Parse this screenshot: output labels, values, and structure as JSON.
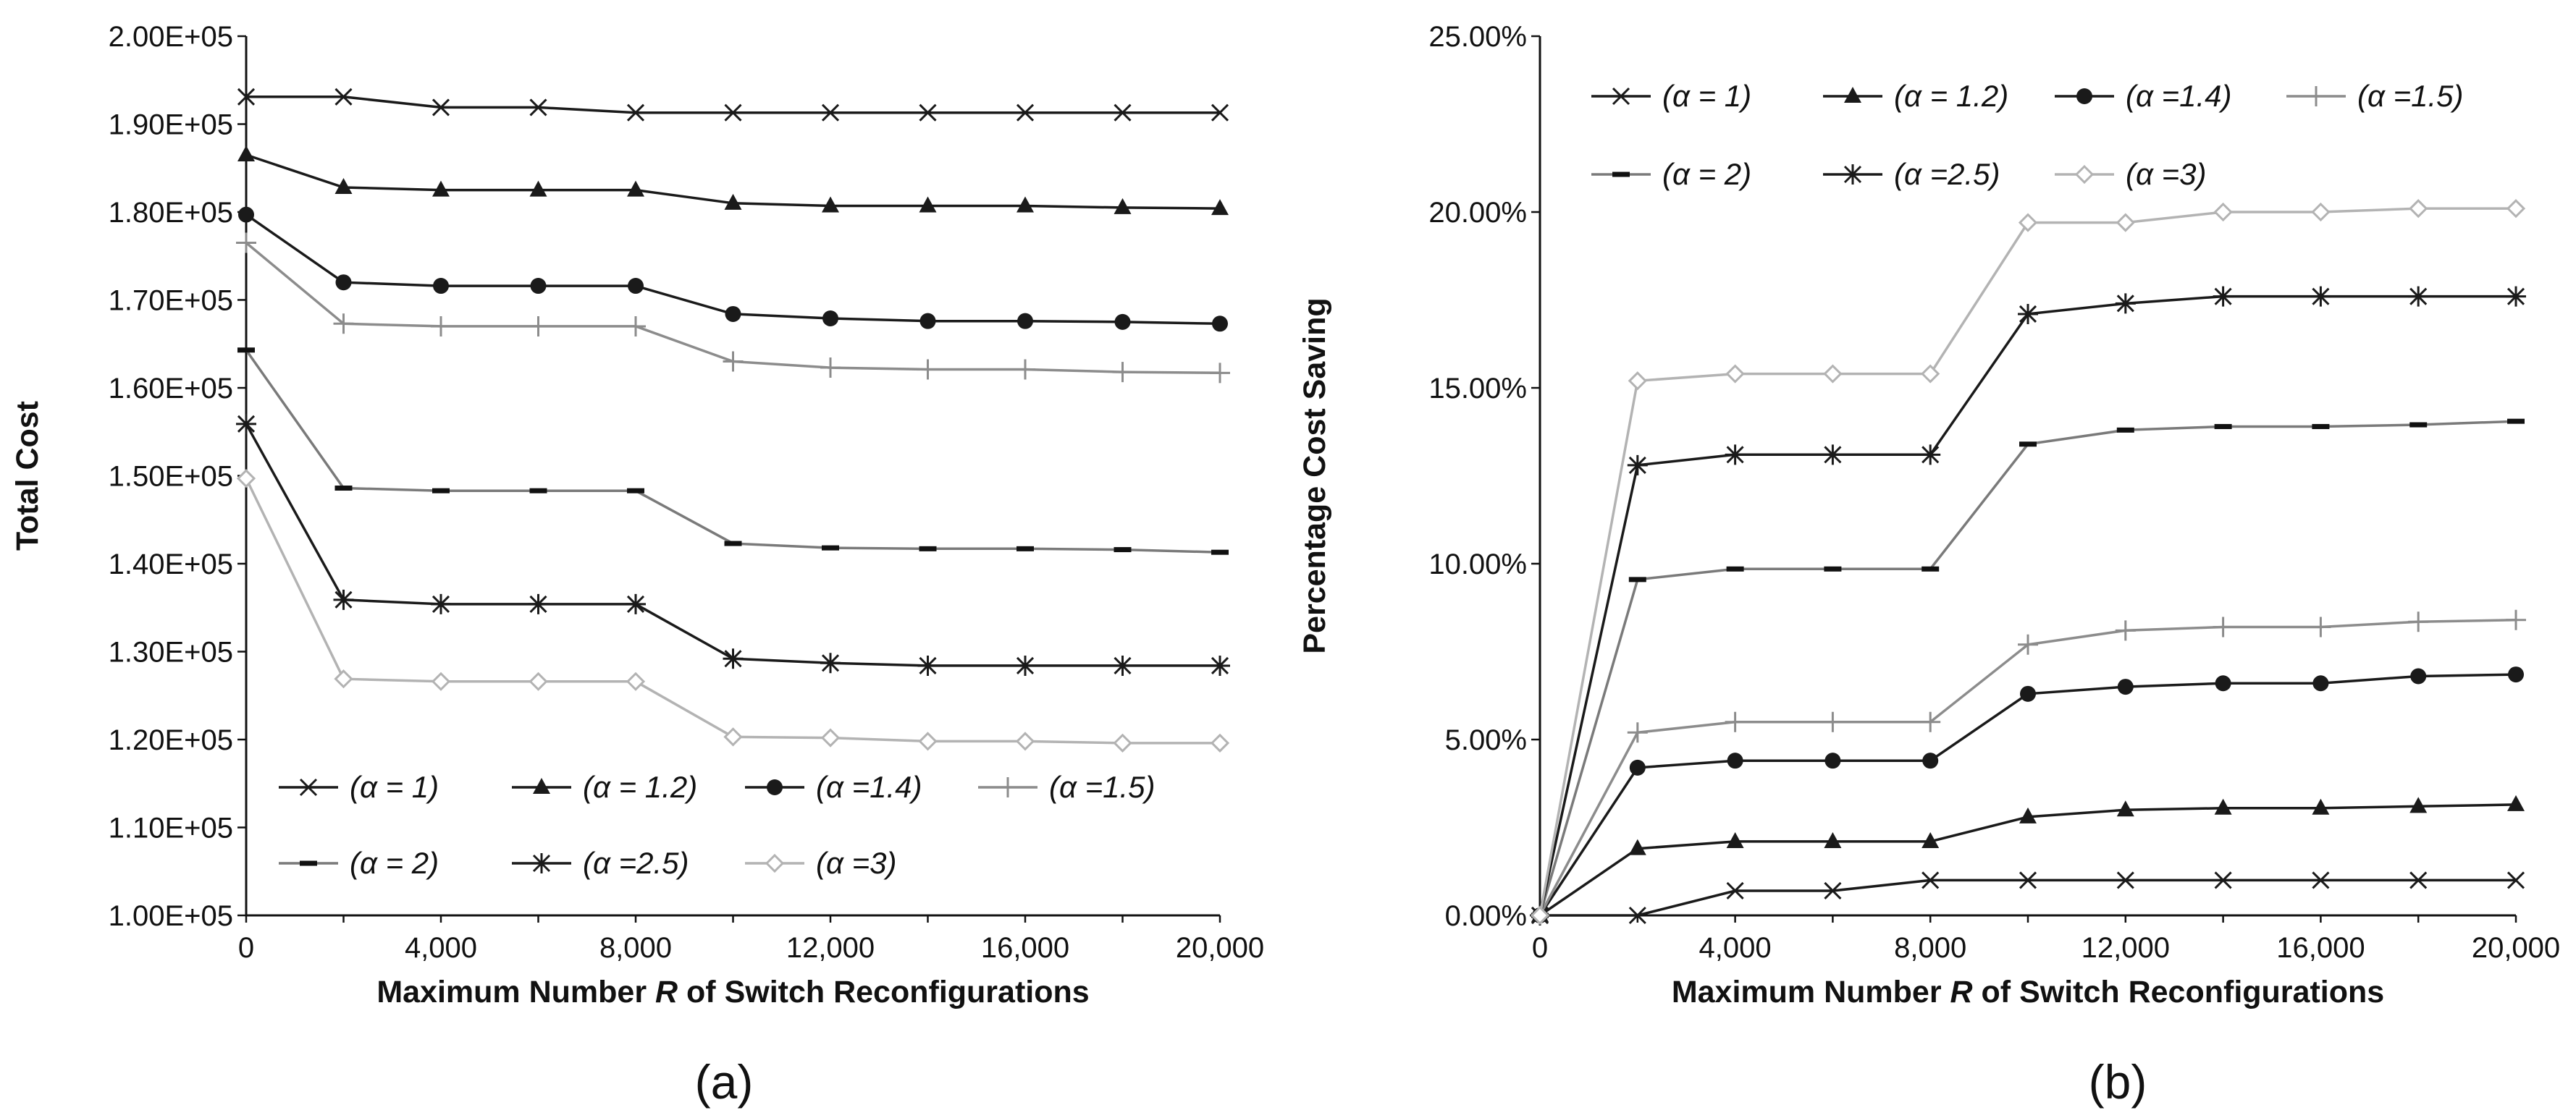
{
  "chart_data": [
    {
      "type": "line",
      "panel": "(a)",
      "xlabel_pre": "Maximum Number ",
      "xlabel_var": "R",
      "xlabel_post": " of Switch Reconfigurations",
      "ylabel": "Total Cost",
      "xlim": [
        0,
        20000
      ],
      "ylim": [
        100000,
        200000
      ],
      "x": [
        0,
        2000,
        4000,
        6000,
        8000,
        10000,
        12000,
        14000,
        16000,
        18000,
        20000
      ],
      "x_tick_values": [
        0,
        4000,
        8000,
        12000,
        16000,
        20000
      ],
      "x_tick_labels": [
        "0",
        "4,000",
        "8,000",
        "12,000",
        "16,000",
        "20,000"
      ],
      "y_tick_values": [
        100000,
        110000,
        120000,
        130000,
        140000,
        150000,
        160000,
        170000,
        180000,
        190000,
        200000
      ],
      "y_tick_labels": [
        "1.00E+05",
        "1.10E+05",
        "1.20E+05",
        "1.30E+05",
        "1.40E+05",
        "1.50E+05",
        "1.60E+05",
        "1.70E+05",
        "1.80E+05",
        "1.90E+05",
        "2.00E+05"
      ],
      "legend_position": "bottom-left",
      "series": [
        {
          "name": "(α = 1)",
          "marker": "x",
          "color": "#1a1a1a",
          "values": [
            193100,
            193100,
            191900,
            191900,
            191300,
            191300,
            191300,
            191300,
            191300,
            191300,
            191300
          ]
        },
        {
          "name": "(α = 1.2)",
          "marker": "triangle",
          "color": "#1a1a1a",
          "values": [
            186500,
            182800,
            182500,
            182500,
            182500,
            181000,
            180700,
            180700,
            180700,
            180500,
            180400
          ]
        },
        {
          "name": "(α =1.4)",
          "marker": "circle",
          "color": "#1a1a1a",
          "values": [
            179700,
            172000,
            171600,
            171600,
            171600,
            168400,
            167900,
            167600,
            167600,
            167500,
            167300
          ]
        },
        {
          "name": "(α =1.5)",
          "marker": "plus",
          "color": "#8c8c8c",
          "values": [
            176500,
            167300,
            167000,
            167000,
            167000,
            163000,
            162300,
            162100,
            162100,
            161800,
            161700
          ]
        },
        {
          "name": "(α = 2)",
          "marker": "dash",
          "color": "#7a7a7a",
          "values": [
            164300,
            148600,
            148300,
            148300,
            148300,
            142300,
            141800,
            141700,
            141700,
            141600,
            141300
          ]
        },
        {
          "name": "(α =2.5)",
          "marker": "star",
          "color": "#1a1a1a",
          "values": [
            155900,
            135900,
            135400,
            135400,
            135400,
            129200,
            128700,
            128400,
            128400,
            128400,
            128400
          ]
        },
        {
          "name": "(α =3)",
          "marker": "diamond",
          "color": "#b3b3b3",
          "values": [
            149700,
            126900,
            126600,
            126600,
            126600,
            120300,
            120200,
            119800,
            119800,
            119600,
            119600
          ]
        }
      ]
    },
    {
      "type": "line",
      "panel": "(b)",
      "xlabel_pre": "Maximum Number ",
      "xlabel_var": "R",
      "xlabel_post": " of Switch Reconfigurations",
      "ylabel": "Percentage Cost Saving",
      "xlim": [
        0,
        20000
      ],
      "ylim": [
        0,
        25
      ],
      "x": [
        0,
        2000,
        4000,
        6000,
        8000,
        10000,
        12000,
        14000,
        16000,
        18000,
        20000
      ],
      "x_tick_values": [
        0,
        4000,
        8000,
        12000,
        16000,
        20000
      ],
      "x_tick_labels": [
        "0",
        "4,000",
        "8,000",
        "12,000",
        "16,000",
        "20,000"
      ],
      "y_tick_values": [
        0,
        5,
        10,
        15,
        20,
        25
      ],
      "y_tick_labels": [
        "0.00%",
        "5.00%",
        "10.00%",
        "15.00%",
        "20.00%",
        "25.00%"
      ],
      "legend_position": "top-left",
      "series": [
        {
          "name": "(α = 1)",
          "marker": "x",
          "color": "#1a1a1a",
          "values": [
            0,
            0,
            0.7,
            0.7,
            1.0,
            1.0,
            1.0,
            1.0,
            1.0,
            1.0,
            1.0
          ]
        },
        {
          "name": "(α = 1.2)",
          "marker": "triangle",
          "color": "#1a1a1a",
          "values": [
            0,
            1.9,
            2.1,
            2.1,
            2.1,
            2.8,
            3.0,
            3.05,
            3.05,
            3.1,
            3.15
          ]
        },
        {
          "name": "(α =1.4)",
          "marker": "circle",
          "color": "#1a1a1a",
          "values": [
            0,
            4.2,
            4.4,
            4.4,
            4.4,
            6.3,
            6.5,
            6.6,
            6.6,
            6.8,
            6.85
          ]
        },
        {
          "name": "(α =1.5)",
          "marker": "plus",
          "color": "#8c8c8c",
          "values": [
            0,
            5.2,
            5.5,
            5.5,
            5.5,
            7.7,
            8.1,
            8.2,
            8.2,
            8.35,
            8.4
          ]
        },
        {
          "name": "(α = 2)",
          "marker": "dash",
          "color": "#7a7a7a",
          "values": [
            0,
            9.55,
            9.85,
            9.85,
            9.85,
            13.4,
            13.8,
            13.9,
            13.9,
            13.95,
            14.05
          ]
        },
        {
          "name": "(α =2.5)",
          "marker": "star",
          "color": "#1a1a1a",
          "values": [
            0,
            12.8,
            13.1,
            13.1,
            13.1,
            17.1,
            17.4,
            17.6,
            17.6,
            17.6,
            17.6
          ]
        },
        {
          "name": "(α =3)",
          "marker": "diamond",
          "color": "#b3b3b3",
          "values": [
            0,
            15.2,
            15.4,
            15.4,
            15.4,
            19.7,
            19.7,
            20.0,
            20.0,
            20.1,
            20.1
          ]
        }
      ]
    }
  ]
}
